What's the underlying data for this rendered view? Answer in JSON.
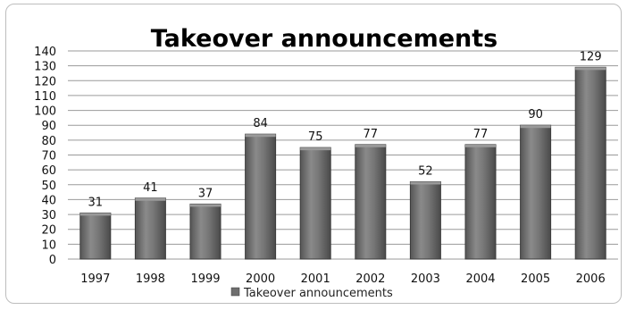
{
  "chart_data": {
    "type": "bar",
    "title": "Takeover announcements",
    "categories": [
      "1997",
      "1998",
      "1999",
      "2000",
      "2001",
      "2002",
      "2003",
      "2004",
      "2005",
      "2006"
    ],
    "series": [
      {
        "name": "Takeover announcements",
        "values": [
          31,
          41,
          37,
          84,
          75,
          77,
          52,
          77,
          90,
          129
        ]
      }
    ],
    "xlabel": "",
    "ylabel": "",
    "ylim": [
      0,
      140
    ],
    "yticks": [
      0,
      10,
      20,
      30,
      40,
      50,
      60,
      70,
      80,
      90,
      100,
      110,
      120,
      130,
      140
    ],
    "grid": true,
    "legend": "bottom",
    "data_labels": true,
    "colors": {
      "bar": "#6e6e6e",
      "bar_edge": "#3c3c3c",
      "bar_highlight": "#9a9a9a"
    }
  }
}
